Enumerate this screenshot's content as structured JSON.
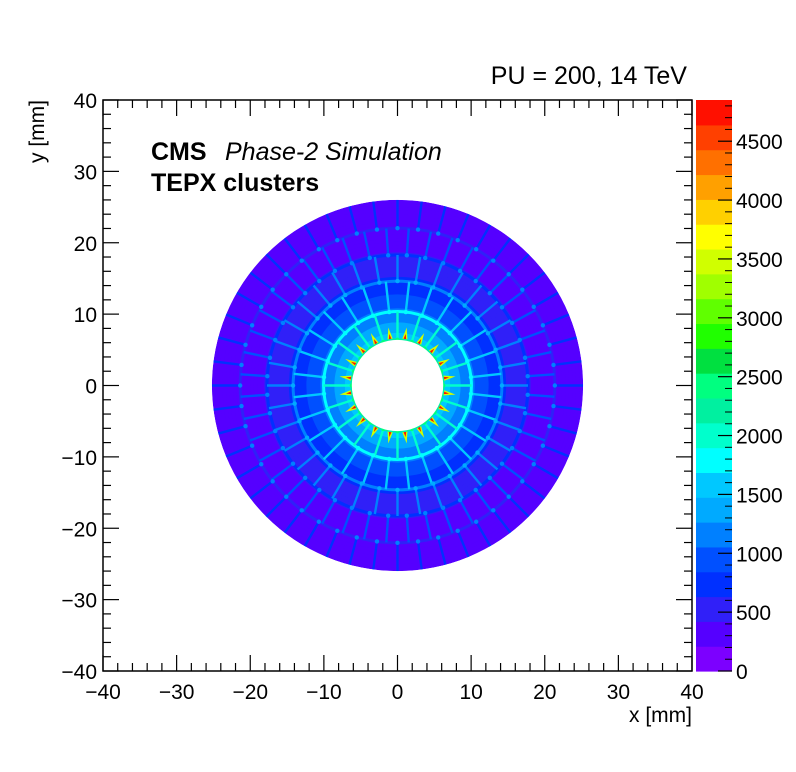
{
  "chart_data": {
    "type": "heatmap",
    "title": "PU = 200, 14 TeV",
    "experiment": "CMS",
    "experiment_label": "Phase-2 Simulation",
    "subtitle": "TEPX clusters",
    "xlabel": "x [mm]",
    "ylabel": "y [mm]",
    "xlim": [
      -40,
      40
    ],
    "ylim": [
      -40,
      40
    ],
    "x_ticks": [
      -40,
      -30,
      -20,
      -10,
      0,
      10,
      20,
      30,
      40
    ],
    "y_ticks": [
      -40,
      -30,
      -20,
      -10,
      0,
      10,
      20,
      30,
      40
    ],
    "x_tick_labels": [
      "−40",
      "−30",
      "−20",
      "−10",
      "0",
      "10",
      "20",
      "30",
      "40"
    ],
    "y_tick_labels": [
      "−40",
      "−30",
      "−20",
      "−10",
      "0",
      "10",
      "20",
      "30",
      "40"
    ],
    "z_range": [
      0,
      4850
    ],
    "colorbar_ticks": [
      0,
      500,
      1000,
      1500,
      2000,
      2500,
      3000,
      3500,
      4000,
      4500
    ],
    "colorbar_tick_labels": [
      "0",
      "500",
      "1000",
      "1500",
      "2000",
      "2500",
      "3000",
      "3500",
      "4000",
      "4500"
    ],
    "distribution": {
      "shape": "annulus",
      "inner_radius": 6.3,
      "outer_radius": 25.6,
      "ring_radii": [
        6.3,
        10.2,
        14.4,
        18.0,
        21.7
      ],
      "ring_modules": [
        20,
        28,
        36,
        44,
        48
      ],
      "peak_value": 4700,
      "edge_value": 300
    },
    "palette": [
      "#7c00ff",
      "#5500ff",
      "#3020f8",
      "#0030ff",
      "#0050ff",
      "#0080ff",
      "#00aaff",
      "#00c8ff",
      "#00ffff",
      "#00ffcc",
      "#00f0a0",
      "#00ff80",
      "#00e040",
      "#20ff00",
      "#60ff00",
      "#a0ff00",
      "#d0ff00",
      "#ffff00",
      "#ffd000",
      "#ffa000",
      "#ff7000",
      "#ff4000",
      "#ff1000"
    ]
  }
}
